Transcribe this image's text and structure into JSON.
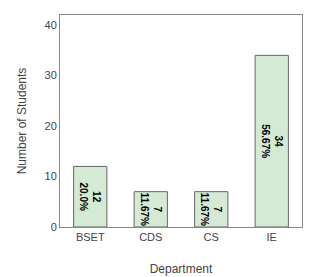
{
  "chart_data": {
    "type": "bar",
    "xlabel": "Department",
    "ylabel": "Number of Students",
    "categories": [
      "BSET",
      "CDS",
      "CS",
      "IE"
    ],
    "values": [
      12,
      7,
      7,
      34
    ],
    "data_labels": true,
    "value_labels": [
      "12\n20.0%",
      "7\n11.67%",
      "7\n11.67%",
      "34\n56.67%"
    ],
    "color": "#d5ead5",
    "ylim": [
      0,
      42
    ],
    "yticks": [
      0,
      10,
      20,
      30,
      40
    ],
    "grid": false
  }
}
